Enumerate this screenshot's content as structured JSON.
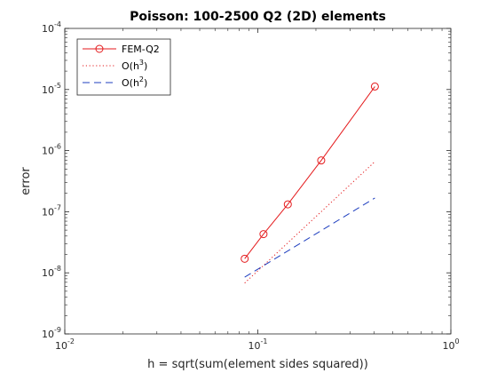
{
  "chart_data": {
    "type": "line",
    "title": "Poisson: 100-2500 Q2 (2D) elements",
    "xlabel": "h = sqrt(sum(element sides squared))",
    "ylabel": "error",
    "xscale": "log",
    "yscale": "log",
    "xlim": [
      0.01,
      1
    ],
    "ylim": [
      1e-09,
      0.0001
    ],
    "grid": false,
    "legend_position": "top-left",
    "x_ticks": [
      {
        "value": 0.01,
        "base": "10",
        "exp": "-2"
      },
      {
        "value": 0.1,
        "base": "10",
        "exp": "-1"
      },
      {
        "value": 1,
        "base": "10",
        "exp": "0"
      }
    ],
    "y_ticks": [
      {
        "value": 1e-09,
        "base": "10",
        "exp": "-9"
      },
      {
        "value": 1e-08,
        "base": "10",
        "exp": "-8"
      },
      {
        "value": 1e-07,
        "base": "10",
        "exp": "-7"
      },
      {
        "value": 1e-06,
        "base": "10",
        "exp": "-6"
      },
      {
        "value": 1e-05,
        "base": "10",
        "exp": "-5"
      },
      {
        "value": 0.0001,
        "base": "10",
        "exp": "-4"
      }
    ],
    "series": [
      {
        "name": "FEM-Q2",
        "legend_base": "FEM-Q2",
        "legend_sup": "",
        "color": "#e41a1c",
        "line_style": "solid",
        "marker": "circle",
        "x": [
          0.0855,
          0.107,
          0.143,
          0.213,
          0.404
        ],
        "y": [
          1.7e-08,
          4.3e-08,
          1.32e-07,
          6.9e-07,
          1.12e-05
        ]
      },
      {
        "name": "O(h3)",
        "legend_base": "O(h",
        "legend_sup": "3",
        "legend_tail": ")",
        "color": "#e41a1c",
        "line_style": "dotted",
        "marker": "none",
        "x": [
          0.0855,
          0.404
        ],
        "y": [
          6.8e-09,
          6.6e-07
        ]
      },
      {
        "name": "O(h2)",
        "legend_base": "O(h",
        "legend_sup": "2",
        "legend_tail": ")",
        "color": "#1f3fbf",
        "line_style": "dashed",
        "marker": "none",
        "x": [
          0.0855,
          0.404
        ],
        "y": [
          8.5e-09,
          1.68e-07
        ]
      }
    ]
  }
}
